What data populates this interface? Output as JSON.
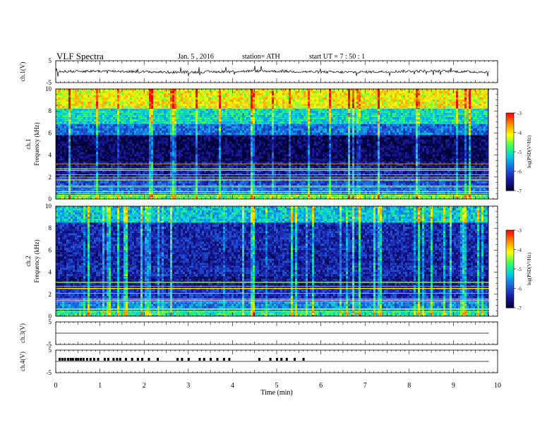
{
  "header": {
    "title": "VLF  Spectra",
    "date": "Jan. 5  , 2016",
    "station": "station= ATH",
    "start": "start  UT  =   7  : 50 : 1"
  },
  "colors": {
    "colormap": [
      "#000033",
      "#1a1aa0",
      "#1f5fe0",
      "#00c8e6",
      "#36ff64",
      "#ffff00",
      "#ff8c00",
      "#ff0000",
      "#ffffff"
    ]
  },
  "chart_data": [
    {
      "type": "line",
      "panel": "ch1-waveform",
      "ylabel": "ch.1(V)",
      "ylim": [
        -5,
        5
      ],
      "yticks": [
        "5",
        "-5"
      ],
      "x_range_min": [
        0,
        9.8
      ],
      "approx_level": 0,
      "approx_amplitude": 0.6
    },
    {
      "type": "heatmap",
      "panel": "ch1-spectrogram",
      "ylabel": [
        "ch.1",
        "Frequency  (kHz)"
      ],
      "ylim": [
        0,
        10
      ],
      "yticks": [
        "0",
        "2",
        "4",
        "6",
        "8",
        "10"
      ],
      "x_range_min": [
        0,
        9.8
      ],
      "colorbar": {
        "label": "log(PSD(V²/Hz)",
        "range": [
          -7,
          -3
        ],
        "ticks": [
          "-3",
          "-4",
          "-5",
          "-6",
          "-7"
        ]
      },
      "bands_khz": [
        {
          "from": 0,
          "to": 0.4,
          "level": -4.6
        },
        {
          "from": 0.4,
          "to": 1.0,
          "level": -5.7
        },
        {
          "from": 1.0,
          "to": 1.8,
          "level": -6.0
        },
        {
          "from": 1.8,
          "to": 2.6,
          "level": -6.4
        },
        {
          "from": 2.6,
          "to": 3.4,
          "level": -6.5
        },
        {
          "from": 3.4,
          "to": 5.8,
          "level": -6.8
        },
        {
          "from": 5.8,
          "to": 6.8,
          "level": -5.8
        },
        {
          "from": 6.8,
          "to": 8.2,
          "level": -5.1
        },
        {
          "from": 8.2,
          "to": 10,
          "level": -4.1
        }
      ]
    },
    {
      "type": "heatmap",
      "panel": "ch2-spectrogram",
      "ylabel": [
        "ch.2",
        "Frequency  (kHz)"
      ],
      "ylim": [
        0,
        10
      ],
      "yticks": [
        "0",
        "2",
        "4",
        "6",
        "8",
        "10"
      ],
      "x_range_min": [
        0,
        9.8
      ],
      "colorbar": {
        "label": "log(PSD(V²/Hz)",
        "range": [
          -7,
          -3
        ],
        "ticks": [
          "-3",
          "-4",
          "-5",
          "-6",
          "-7"
        ]
      },
      "bands_khz": [
        {
          "from": 0,
          "to": 0.5,
          "level": -4.9
        },
        {
          "from": 0.5,
          "to": 1.3,
          "level": -5.6
        },
        {
          "from": 1.3,
          "to": 2.6,
          "level": -6.2
        },
        {
          "from": 2.6,
          "to": 3.6,
          "level": -6.5
        },
        {
          "from": 3.6,
          "to": 4.6,
          "level": -6.3
        },
        {
          "from": 4.6,
          "to": 6.0,
          "level": -6.4
        },
        {
          "from": 6.0,
          "to": 8.5,
          "level": -6.3
        },
        {
          "from": 8.5,
          "to": 10,
          "level": -5.3
        }
      ]
    },
    {
      "type": "line",
      "panel": "ch3-waveform",
      "ylabel": "ch.3(V)",
      "ylim": [
        -5,
        5
      ],
      "yticks": [
        "5",
        "-5"
      ],
      "x_range_min": [
        0,
        9.8
      ],
      "approx_level": 0
    },
    {
      "type": "line",
      "panel": "ch4-waveform",
      "ylabel": "ch.4(V)",
      "ylim": [
        -5,
        5
      ],
      "yticks": [
        "5",
        "-5"
      ],
      "x_range_min": [
        0,
        9.8
      ],
      "approx_level": 0,
      "pulse_times_min": [
        0.08,
        0.14,
        0.2,
        0.27,
        0.33,
        0.38,
        0.45,
        0.5,
        0.56,
        0.62,
        0.7,
        0.78,
        0.86,
        0.95,
        1.1,
        1.18,
        1.3,
        1.38,
        1.45,
        1.58,
        1.72,
        1.85,
        1.95,
        2.1,
        2.3,
        2.75,
        2.85,
        3.0,
        3.25,
        3.35,
        3.5,
        3.65,
        3.8,
        3.92,
        4.6,
        4.85,
        5.0,
        5.1,
        5.22,
        5.4,
        5.6
      ]
    }
  ],
  "xaxis": {
    "label": "Time  (min)",
    "xlim": [
      0,
      10
    ],
    "ticks": [
      "0",
      "1",
      "2",
      "3",
      "4",
      "5",
      "6",
      "7",
      "8",
      "9",
      "10"
    ]
  }
}
